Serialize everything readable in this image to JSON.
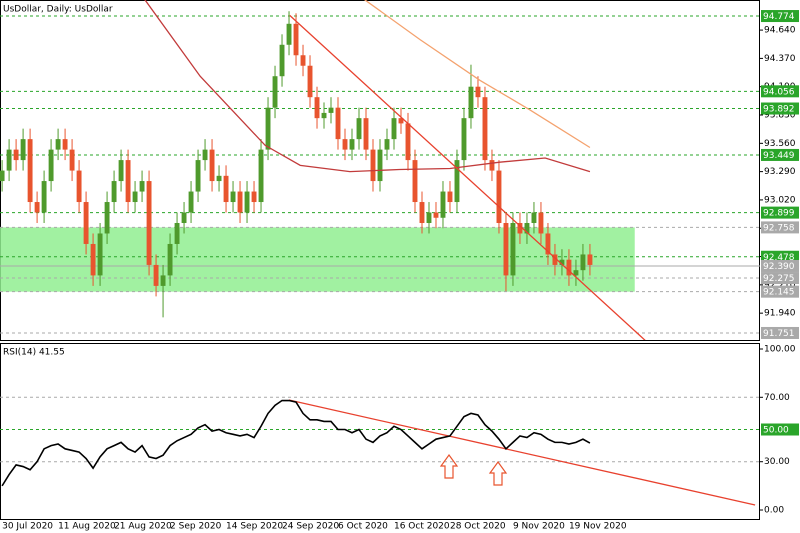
{
  "chart_data": [
    {
      "type": "candlestick",
      "title": "UsDollar, Daily: UsDollar",
      "up_color": "#4f9a2c",
      "down_color": "#e8542e",
      "categories": [
        "30 Jul 2020",
        null,
        null,
        null,
        null,
        null,
        null,
        null,
        "11 Aug 2020",
        null,
        null,
        null,
        null,
        null,
        null,
        null,
        "21 Aug 2020",
        null,
        null,
        null,
        null,
        null,
        null,
        null,
        "2 Sep 2020",
        null,
        null,
        null,
        null,
        null,
        null,
        null,
        "14 Sep 2020",
        null,
        null,
        null,
        null,
        null,
        null,
        null,
        "24 Sep 2020",
        null,
        null,
        null,
        null,
        null,
        null,
        null,
        "6 Oct 2020",
        null,
        null,
        null,
        null,
        null,
        null,
        null,
        "16 Oct 2020",
        null,
        null,
        null,
        null,
        null,
        null,
        null,
        "28 Oct 2020",
        null,
        null,
        null,
        null,
        null,
        null,
        null,
        null,
        "9 Nov 2020",
        null,
        null,
        null,
        null,
        null,
        null,
        null,
        "19 Nov 2020",
        null,
        null,
        null
      ],
      "open": [
        93.2,
        93.3,
        93.5,
        93.4,
        93.6,
        93.0,
        92.9,
        93.2,
        93.5,
        93.6,
        93.5,
        93.3,
        93.0,
        92.6,
        92.3,
        92.7,
        93.0,
        93.2,
        93.4,
        93.0,
        93.1,
        93.2,
        92.4,
        92.2,
        92.3,
        92.6,
        92.8,
        92.9,
        93.1,
        93.4,
        93.5,
        93.2,
        93.25,
        93.0,
        93.1,
        92.9,
        93.1,
        93.0,
        93.5,
        93.9,
        94.2,
        94.5,
        94.7,
        94.4,
        94.3,
        94.0,
        93.8,
        93.85,
        93.9,
        93.6,
        93.5,
        93.6,
        93.8,
        93.5,
        93.2,
        93.5,
        93.6,
        93.8,
        93.75,
        93.4,
        93.0,
        92.8,
        92.9,
        92.85,
        93.1,
        93.0,
        93.4,
        93.8,
        94.1,
        94.0,
        93.4,
        93.3,
        92.8,
        92.3,
        92.8,
        92.7,
        92.8,
        92.9,
        92.7,
        92.5,
        92.4,
        92.45,
        92.3,
        92.35,
        92.5
      ],
      "high": [
        93.4,
        93.6,
        93.6,
        93.7,
        93.7,
        93.1,
        93.3,
        93.6,
        93.7,
        93.7,
        93.6,
        93.4,
        93.1,
        92.7,
        92.8,
        93.1,
        93.3,
        93.5,
        93.5,
        93.2,
        93.3,
        93.3,
        92.5,
        92.4,
        92.7,
        92.9,
        93.0,
        93.2,
        93.5,
        93.6,
        93.6,
        93.35,
        93.35,
        93.2,
        93.2,
        93.2,
        93.2,
        93.6,
        94.0,
        94.3,
        94.6,
        94.82,
        94.8,
        94.5,
        94.4,
        94.1,
        93.95,
        94.0,
        94.0,
        93.7,
        93.7,
        93.9,
        93.9,
        93.6,
        93.6,
        93.7,
        93.9,
        93.9,
        93.85,
        93.5,
        93.1,
        93.0,
        93.0,
        93.2,
        93.2,
        93.5,
        93.9,
        94.31,
        94.2,
        94.1,
        93.5,
        93.4,
        92.9,
        92.9,
        92.9,
        92.9,
        93.0,
        93.0,
        92.8,
        92.6,
        92.55,
        92.55,
        92.45,
        92.6,
        92.6
      ],
      "low": [
        93.1,
        93.2,
        93.3,
        93.3,
        92.9,
        92.8,
        92.8,
        93.1,
        93.4,
        93.4,
        93.2,
        92.9,
        92.5,
        92.2,
        92.2,
        92.6,
        92.9,
        93.1,
        92.9,
        92.9,
        93.0,
        92.3,
        92.1,
        91.9,
        92.2,
        92.5,
        92.7,
        92.8,
        93.0,
        93.3,
        93.1,
        93.1,
        92.9,
        92.9,
        92.8,
        92.8,
        92.9,
        92.9,
        93.4,
        93.8,
        94.1,
        94.4,
        94.3,
        94.2,
        93.9,
        93.7,
        93.7,
        93.75,
        93.5,
        93.4,
        93.4,
        93.5,
        93.4,
        93.1,
        93.1,
        93.4,
        93.5,
        93.65,
        93.3,
        92.9,
        92.7,
        92.7,
        92.75,
        92.75,
        92.9,
        92.9,
        93.3,
        93.7,
        93.9,
        93.3,
        93.2,
        92.7,
        92.15,
        92.2,
        92.6,
        92.6,
        92.7,
        92.6,
        92.4,
        92.3,
        92.3,
        92.2,
        92.2,
        92.25,
        92.3
      ],
      "close": [
        93.3,
        93.5,
        93.4,
        93.6,
        93.0,
        92.9,
        93.2,
        93.5,
        93.6,
        93.5,
        93.3,
        93.0,
        92.6,
        92.3,
        92.7,
        93.0,
        93.2,
        93.4,
        93.0,
        93.1,
        93.2,
        92.4,
        92.2,
        92.3,
        92.6,
        92.8,
        92.9,
        93.1,
        93.4,
        93.5,
        93.2,
        93.25,
        93.0,
        93.1,
        92.9,
        93.1,
        93.0,
        93.5,
        93.9,
        94.2,
        94.5,
        94.7,
        94.4,
        94.3,
        94.0,
        93.8,
        93.85,
        93.9,
        93.6,
        93.5,
        93.6,
        93.8,
        93.5,
        93.2,
        93.5,
        93.6,
        93.8,
        93.75,
        93.4,
        93.0,
        92.8,
        92.9,
        92.85,
        93.1,
        93.0,
        93.4,
        93.8,
        94.1,
        94.0,
        93.4,
        93.3,
        92.8,
        92.3,
        92.8,
        92.7,
        92.8,
        92.9,
        92.7,
        92.5,
        92.4,
        92.45,
        92.3,
        92.35,
        92.5,
        92.4
      ],
      "xlim": [
        -0.3,
        108.3
      ],
      "ylim": [
        91.684,
        94.927
      ],
      "yticks": [
        {
          "value": 91.94,
          "label": "91.940"
        },
        {
          "value": 92.21,
          "label": "92.210"
        },
        {
          "value": 92.48,
          "label": "92.480"
        },
        {
          "value": 92.75,
          "label": "92.750"
        },
        {
          "value": 93.02,
          "label": "93.020"
        },
        {
          "value": 93.29,
          "label": "93.290"
        },
        {
          "value": 93.56,
          "label": "93.560"
        },
        {
          "value": 93.83,
          "label": "93.830"
        },
        {
          "value": 94.1,
          "label": "94.100"
        },
        {
          "value": 94.37,
          "label": "94.370"
        },
        {
          "value": 94.64,
          "label": "94.640"
        }
      ],
      "zone": {
        "y": [
          92.145,
          92.758
        ],
        "x_end": 90.4,
        "color": "#90ee90"
      },
      "levels": [
        {
          "value": 94.774,
          "color": "#2aa52a"
        },
        {
          "value": 94.056,
          "color": "#2aa52a"
        },
        {
          "value": 93.892,
          "color": "#2aa52a"
        },
        {
          "value": 93.449,
          "color": "#2aa52a"
        },
        {
          "value": 92.899,
          "color": "#2aa52a"
        },
        {
          "value": 92.758,
          "color": "#a9a9a9"
        },
        {
          "value": 92.478,
          "color": "#2aa52a"
        },
        {
          "value": 92.39,
          "label": "92.390",
          "color": "#a9a9a9",
          "solid": true
        },
        {
          "value": 92.275,
          "color": "#a9a9a9"
        },
        {
          "value": 92.145,
          "color": "#a9a9a9"
        },
        {
          "value": 91.751,
          "color": "#a9a9a9"
        }
      ],
      "overlays": [
        {
          "color": "#c23b3b",
          "x": [
            20.4,
            28.3,
            37.6,
            42.6,
            49.7,
            56.8,
            64,
            71.1,
            77.6,
            84
          ],
          "values": [
            94.93,
            94.2,
            93.54,
            93.35,
            93.29,
            93.31,
            93.32,
            93.38,
            93.42,
            93.29
          ]
        },
        {
          "color": "#f4a26e",
          "x": [
            51.8,
            59.7,
            68.3,
            75.4,
            84
          ],
          "values": [
            94.93,
            94.55,
            94.16,
            93.88,
            93.52
          ]
        },
        {
          "color": "#e8412e",
          "x": [
            41.1,
            91.9
          ],
          "values": [
            94.78,
            91.68
          ]
        }
      ]
    },
    {
      "type": "line",
      "title": "RSI(14) 41.55",
      "color": "#000000",
      "values": [
        15,
        22,
        28,
        27,
        25,
        30,
        38,
        40,
        41,
        38,
        37,
        36,
        32,
        26,
        33,
        38,
        40,
        42,
        38,
        36,
        40,
        33,
        32,
        34,
        40,
        43,
        45,
        47,
        51,
        53,
        49,
        50,
        48,
        47,
        46,
        47,
        45,
        52,
        60,
        65,
        68,
        68,
        67,
        60,
        56,
        56,
        55,
        55,
        50,
        50,
        48,
        50,
        44,
        42,
        46,
        48,
        52,
        50,
        46,
        42,
        38,
        41,
        44,
        45,
        46,
        52,
        58,
        60,
        59,
        53,
        49,
        44,
        38,
        42,
        46,
        45,
        48,
        47,
        44,
        42,
        42,
        41,
        42,
        44,
        41.55
      ],
      "xlim": [
        -0.3,
        108.3
      ],
      "ylim": [
        -6.2,
        103.1
      ],
      "yticks": [
        {
          "value": 0,
          "label": "0.00"
        },
        {
          "value": 30,
          "label": "30.00"
        },
        {
          "value": 70,
          "label": "70.00"
        },
        {
          "value": 100,
          "label": "100.00"
        }
      ],
      "levels": [
        {
          "value": 70,
          "color": "#a9a9a9"
        },
        {
          "value": 50,
          "label": "50.00",
          "color": "#2aa52a"
        },
        {
          "value": 30,
          "color": "#a9a9a9"
        }
      ],
      "overlays": [
        {
          "color": "#e8412e",
          "x": [
            41,
            107.6
          ],
          "values": [
            68.3,
            3.1
          ]
        }
      ]
    }
  ]
}
